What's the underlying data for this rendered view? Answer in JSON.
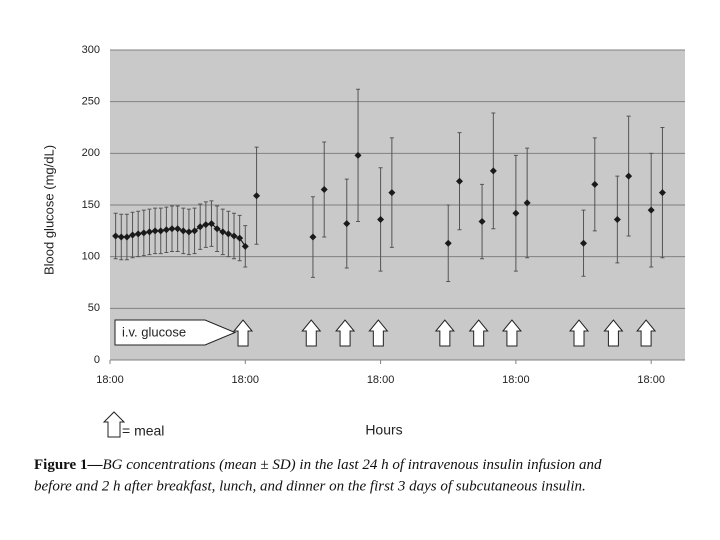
{
  "chart_data": {
    "type": "errorbar",
    "ylabel": "Blood glucose (mg/dL)",
    "xlabel": "Hours",
    "ylim": [
      0,
      300
    ],
    "yticks": [
      0,
      50,
      100,
      150,
      200,
      250,
      300
    ],
    "xlim": [
      0,
      102
    ],
    "xticks": [
      {
        "value": 0,
        "label": "18:00"
      },
      {
        "value": 24,
        "label": "18:00"
      },
      {
        "value": 48,
        "label": "18:00"
      },
      {
        "value": 72,
        "label": "18:00"
      },
      {
        "value": 96,
        "label": "18:00"
      }
    ],
    "grid": true,
    "series": [
      {
        "color": "#1a1a1a",
        "line": true,
        "x": [
          1,
          2,
          3,
          4,
          5,
          6,
          7,
          8,
          9,
          10,
          11,
          12,
          13,
          14,
          15,
          16,
          17,
          18,
          19,
          20,
          21,
          22,
          23,
          24
        ],
        "values": [
          120,
          119,
          119,
          121,
          122,
          123,
          124,
          125,
          125,
          126,
          127,
          127,
          125,
          124,
          125,
          129,
          131,
          132,
          127,
          124,
          122,
          120,
          118,
          110
        ],
        "errors": [
          22,
          22,
          22,
          22,
          22,
          22,
          22,
          22,
          22,
          22,
          22,
          22,
          22,
          22,
          22,
          22,
          22,
          22,
          22,
          22,
          22,
          22,
          22,
          20
        ]
      },
      {
        "color": "#1a1a1a",
        "line": false,
        "x": [
          26,
          36,
          38,
          42,
          44,
          48,
          50,
          60,
          62,
          66,
          68,
          72,
          74,
          84,
          86,
          90,
          92,
          96,
          98
        ],
        "values": [
          159,
          119,
          165,
          132,
          198,
          136,
          162,
          113,
          173,
          134,
          183,
          142,
          152,
          113,
          170,
          136,
          178,
          145,
          162
        ],
        "errors": [
          47,
          39,
          46,
          43,
          64,
          50,
          53,
          37,
          47,
          36,
          56,
          56,
          53,
          32,
          45,
          42,
          58,
          55,
          63
        ]
      }
    ],
    "meal_times": [
      23.6,
      35.7,
      41.7,
      47.6,
      59.4,
      65.4,
      71.3,
      83.2,
      89.3,
      95.1
    ],
    "annotation": "i.v. glucose",
    "meal_legend": "= meal"
  },
  "caption": {
    "label": "Figure 1—",
    "lines": [
      "BG concentrations (mean ± SD) in the last 24 h of intravenous insulin infusion and",
      "before and 2 h after breakfast, lunch, and dinner on the first 3 days of subcutaneous insulin."
    ]
  }
}
